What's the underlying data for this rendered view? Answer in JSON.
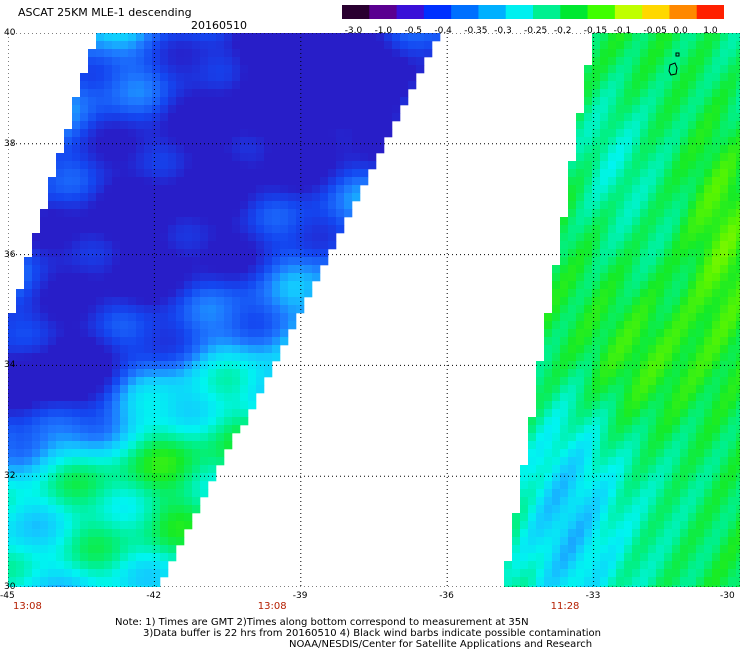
{
  "header": {
    "title": "ASCAT 25KM MLE-1 descending",
    "date": "20160510"
  },
  "colorbar": {
    "labels": [
      "-3.0",
      "-1.0",
      "-0.5",
      "-0.4",
      "-0.35",
      "-0.3",
      "-0.25",
      "-0.2",
      "-0.15",
      "-0.1",
      "-0.05",
      "0.0",
      "1.0"
    ],
    "colors": [
      "#2a0030",
      "#5a0090",
      "#3a10d8",
      "#0030ff",
      "#0070ff",
      "#00b0ff",
      "#00f0f0",
      "#00f090",
      "#00e830",
      "#40ff00",
      "#c0ff00",
      "#ffd800",
      "#ff8800",
      "#ff2000"
    ]
  },
  "map": {
    "x_ticks": [
      "-45",
      "-42",
      "-39",
      "-36",
      "-33",
      "-30"
    ],
    "y_ticks": [
      "40",
      "38",
      "36",
      "34",
      "32",
      "30"
    ],
    "lon_range": [
      -45,
      -30
    ],
    "lat_range": [
      30,
      40
    ],
    "swath_times": [
      {
        "label": "13:08",
        "lon": -45
      },
      {
        "label": "13:08",
        "lon": -39
      },
      {
        "label": "11:28",
        "lon": -33
      }
    ]
  },
  "notes": {
    "line1": "Note: 1) Times are GMT 2)Times along bottom correspond to measurement at 35N",
    "line2": "3)Data buffer is 22 hrs from 20160510 4) Black wind barbs indicate possible contamination",
    "line3": "NOAA/NESDIS/Center for Satellite Applications and Research"
  }
}
